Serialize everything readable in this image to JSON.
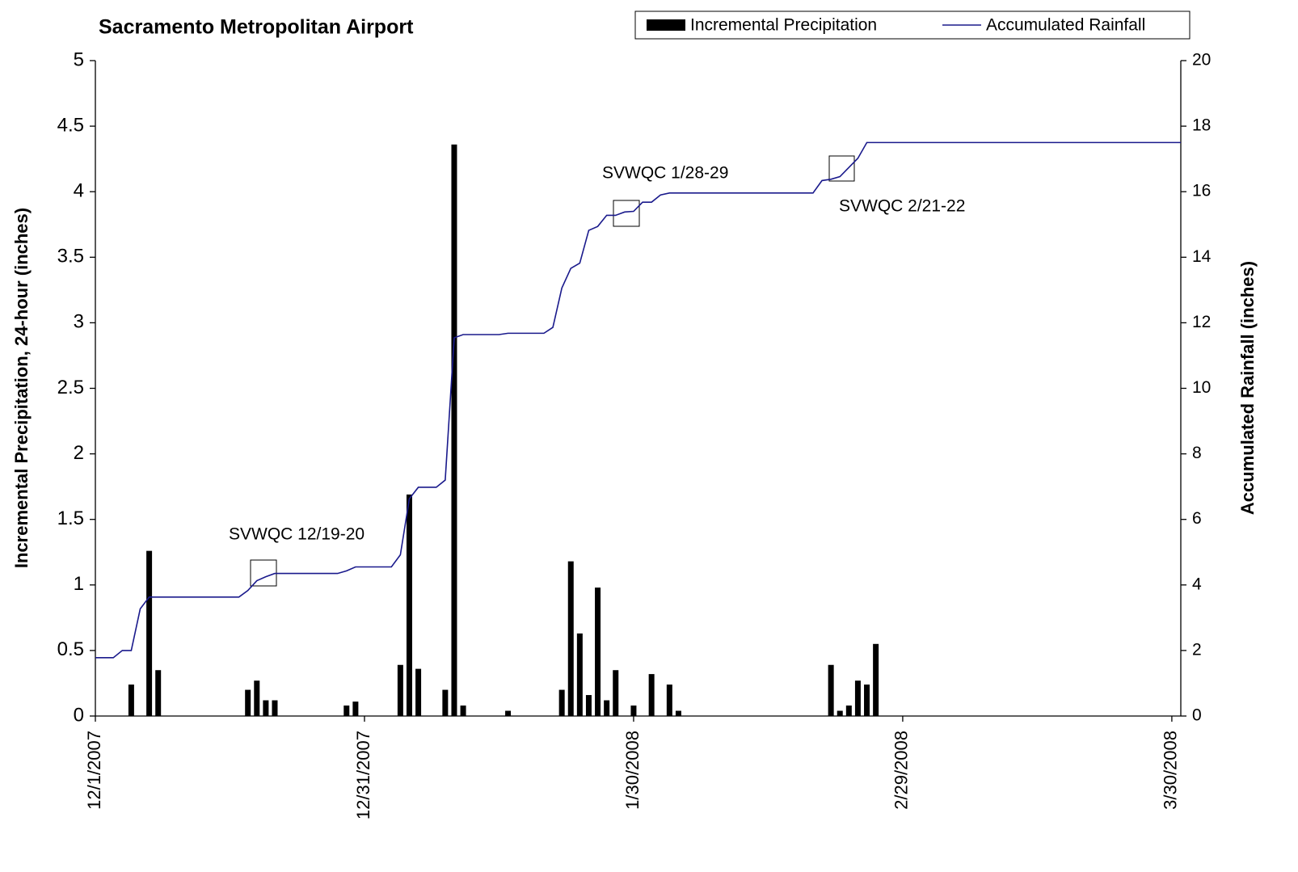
{
  "chart_data": {
    "type": "bar",
    "title": "Sacramento Metropolitan Airport",
    "y_label": "Incremental Precipitation, 24-hour (inches)",
    "y2_label": "Accumulated Rainfall (inches)",
    "legend": "top-right",
    "xlim": [
      "12/1/2007",
      "3/31/2008"
    ],
    "xticks": [
      "12/1/2007",
      "12/31/2007",
      "1/30/2008",
      "2/29/2008",
      "3/30/2008"
    ],
    "ylim": [
      0,
      5
    ],
    "yticks": [
      0,
      0.5,
      1,
      1.5,
      2,
      2.5,
      3,
      3.5,
      4,
      4.5,
      5
    ],
    "y2lim": [
      0,
      20
    ],
    "y2ticks": [
      0,
      2,
      4,
      6,
      8,
      10,
      12,
      14,
      16,
      18,
      20
    ],
    "series": [
      {
        "name": "Incremental Precipitation",
        "type": "bar",
        "color": "#000000",
        "x": [
          "12/5/2007",
          "12/7/2007",
          "12/8/2007",
          "12/18/2007",
          "12/19/2007",
          "12/20/2007",
          "12/21/2007",
          "12/29/2007",
          "12/30/2007",
          "1/4/2008",
          "1/5/2008",
          "1/6/2008",
          "1/9/2008",
          "1/10/2008",
          "1/11/2008",
          "1/16/2008",
          "1/22/2008",
          "1/23/2008",
          "1/24/2008",
          "1/25/2008",
          "1/26/2008",
          "1/27/2008",
          "1/28/2008",
          "1/30/2008",
          "2/1/2008",
          "2/3/2008",
          "2/4/2008",
          "2/21/2008",
          "2/22/2008",
          "2/23/2008",
          "2/24/2008",
          "2/25/2008",
          "2/26/2008"
        ],
        "values": [
          0.24,
          1.26,
          0.35,
          0.2,
          0.27,
          0.12,
          0.12,
          0.08,
          0.11,
          0.39,
          1.69,
          0.36,
          0.2,
          4.36,
          0.08,
          0.04,
          0.2,
          1.18,
          0.63,
          0.16,
          0.98,
          0.12,
          0.35,
          0.08,
          0.32,
          0.24,
          0.04,
          0.39,
          0.04,
          0.08,
          0.27,
          0.24,
          0.55
        ]
      },
      {
        "name": "Accumulated Rainfall",
        "type": "line",
        "axis": "y2",
        "color": "#1a1a8c",
        "x": [
          "12/1/2007",
          "12/3/2007",
          "12/4/2007",
          "12/5/2007",
          "12/6/2007",
          "12/7/2007",
          "12/17/2007",
          "12/18/2007",
          "12/19/2007",
          "12/20/2007",
          "12/21/2007",
          "12/28/2007",
          "12/29/2007",
          "12/30/2007",
          "1/3/2008",
          "1/4/2008",
          "1/5/2008",
          "1/6/2008",
          "1/8/2008",
          "1/9/2008",
          "1/10/2008",
          "1/11/2008",
          "1/15/2008",
          "1/16/2008",
          "1/20/2008",
          "1/21/2008",
          "1/22/2008",
          "1/23/2008",
          "1/24/2008",
          "1/25/2008",
          "1/26/2008",
          "1/27/2008",
          "1/28/2008",
          "1/29/2008",
          "1/30/2008",
          "1/31/2008",
          "2/1/2008",
          "2/2/2008",
          "2/3/2008",
          "2/19/2008",
          "2/20/2008",
          "2/21/2008",
          "2/22/2008",
          "2/23/2008",
          "2/24/2008",
          "2/25/2008",
          "3/31/2008"
        ],
        "values": [
          1.78,
          1.78,
          2.0,
          2.0,
          3.27,
          3.63,
          3.63,
          3.83,
          4.13,
          4.25,
          4.35,
          4.35,
          4.43,
          4.55,
          4.55,
          4.92,
          6.63,
          6.98,
          6.98,
          7.2,
          11.54,
          11.64,
          11.64,
          11.68,
          11.68,
          11.86,
          13.06,
          13.66,
          13.82,
          14.82,
          14.94,
          15.28,
          15.28,
          15.38,
          15.4,
          15.68,
          15.68,
          15.9,
          15.96,
          15.96,
          16.34,
          16.38,
          16.46,
          16.74,
          17.02,
          17.5,
          17.5
        ]
      }
    ],
    "annotations": [
      {
        "text": "SVWQC 12/19-20"
      },
      {
        "text": "SVWQC 1/28-29"
      },
      {
        "text": "SVWQC 2/21-22"
      }
    ]
  }
}
